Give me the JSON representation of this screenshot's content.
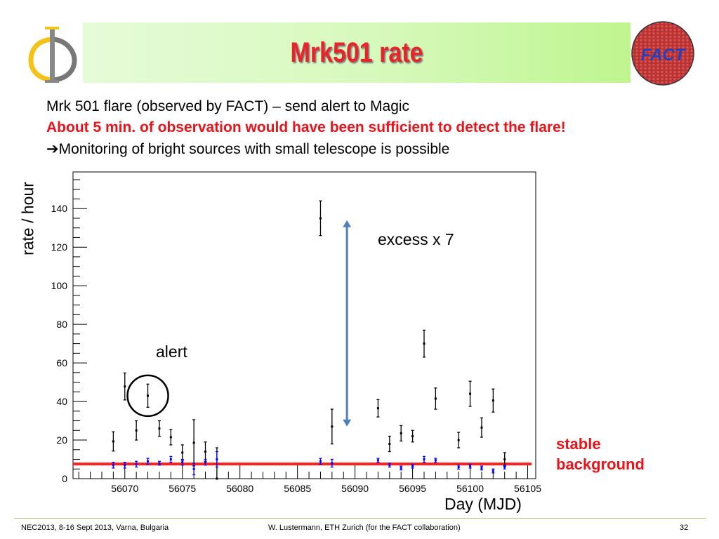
{
  "header": {
    "title": "Mrk501 rate",
    "left_logo": "phi-logo",
    "right_logo": "FACT",
    "banner_color": "#d6f9bb",
    "title_color": "#e8242b"
  },
  "bullets": [
    "Mrk 501 flare (observed by FACT) – send alert to Magic",
    "About 5 min. of observation would have been sufficient to detect the flare!",
    "➔Monitoring of bright sources with small telescope is possible"
  ],
  "annotations": {
    "alert": "alert",
    "excess": "excess x 7",
    "stable_1": "stable",
    "stable_2": "background"
  },
  "footer": {
    "left": "NEC2013, 8-16 Sept 2013, Varna, Bulgaria",
    "center": "W. Lustermann, ETH Zurich (for the FACT collaboration)",
    "page": "32"
  },
  "chart_data": {
    "type": "scatter",
    "title": "",
    "xlabel": "Day (MJD)",
    "ylabel": "rate / hour",
    "xlim": [
      56065.5,
      56105.7
    ],
    "ylim": [
      0,
      159
    ],
    "xticks": [
      56070,
      56075,
      56080,
      56085,
      56090,
      56095,
      56100,
      56105
    ],
    "yticks": [
      0,
      20,
      40,
      60,
      80,
      100,
      120,
      140
    ],
    "grid": false,
    "series": [
      {
        "color": "#000000",
        "points": [
          [
            56069,
            19.3,
            5
          ],
          [
            56070,
            47.8,
            7
          ],
          [
            56071,
            25,
            5
          ],
          [
            56072,
            43,
            6
          ],
          [
            56073,
            26,
            4
          ],
          [
            56074,
            21.5,
            4
          ],
          [
            56075,
            13.5,
            4
          ],
          [
            56076,
            18.6,
            12
          ],
          [
            56077,
            14,
            5
          ],
          [
            56078,
            0,
            16
          ],
          [
            56087,
            135,
            9
          ],
          [
            56088,
            27,
            9
          ],
          [
            56092,
            36.5,
            4.5
          ],
          [
            56093,
            18,
            4
          ],
          [
            56094,
            23.5,
            4
          ],
          [
            56095,
            22,
            3
          ],
          [
            56096,
            70,
            7
          ],
          [
            56097,
            41.5,
            5.5
          ],
          [
            56099,
            20,
            4
          ],
          [
            56100,
            44,
            6.5
          ],
          [
            56101,
            26.5,
            5
          ],
          [
            56102,
            40.5,
            6
          ],
          [
            56103,
            10,
            3.5
          ]
        ]
      },
      {
        "color": "#0000ff",
        "points": [
          [
            56069,
            7,
            1.5
          ],
          [
            56070,
            7,
            1.5
          ],
          [
            56071,
            7.5,
            1.5
          ],
          [
            56072,
            9,
            1.5
          ],
          [
            56073,
            8,
            1
          ],
          [
            56074,
            10,
            1.5
          ],
          [
            56075,
            8.5,
            1.5
          ],
          [
            56076,
            5,
            3
          ],
          [
            56077,
            8.5,
            1.5
          ],
          [
            56078,
            10,
            4
          ],
          [
            56087,
            9,
            1.5
          ],
          [
            56088,
            8,
            2
          ],
          [
            56092,
            9.5,
            1
          ],
          [
            56093,
            7,
            1
          ],
          [
            56094,
            5.5,
            1
          ],
          [
            56095,
            6.5,
            1
          ],
          [
            56096,
            10,
            1.5
          ],
          [
            56097,
            9.5,
            1
          ],
          [
            56099,
            6,
            1
          ],
          [
            56100,
            6.5,
            1
          ],
          [
            56101,
            5.5,
            1
          ],
          [
            56102,
            4,
            1
          ],
          [
            56103,
            6,
            1
          ]
        ]
      }
    ],
    "background_level": {
      "value": 7.6,
      "color": "#ff2020"
    },
    "excess_arrow": {
      "x": 56089.3,
      "from": 27,
      "to": 134,
      "color": "#4f81bd"
    },
    "alert_circle": {
      "x": 56072,
      "y": 43
    }
  }
}
